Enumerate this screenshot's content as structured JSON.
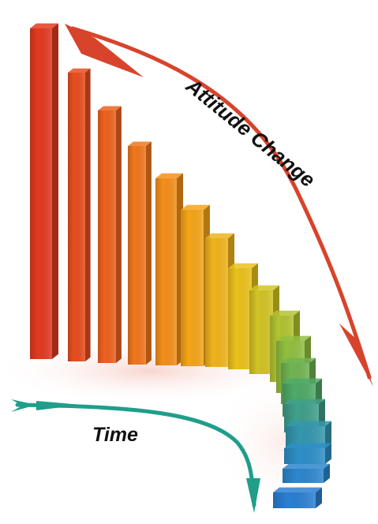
{
  "labels": {
    "attitude": "Attitude Change",
    "time": "Time"
  },
  "colors": {
    "attitude_arrow": "#d8432c",
    "time_arrow": "#1f9e8a",
    "bar_gradient": [
      "#e33a22",
      "#ef6a1e",
      "#f6a31a",
      "#e9c51c",
      "#9cc23a",
      "#4aa86a",
      "#2f92c4",
      "#2b7fd4"
    ],
    "shadow": "#f2b3a8"
  },
  "bars": {
    "count": 18
  },
  "icons": {
    "attitude_arrow": "curved-arrow-down-right",
    "time_arrow": "curved-arrow-down"
  }
}
